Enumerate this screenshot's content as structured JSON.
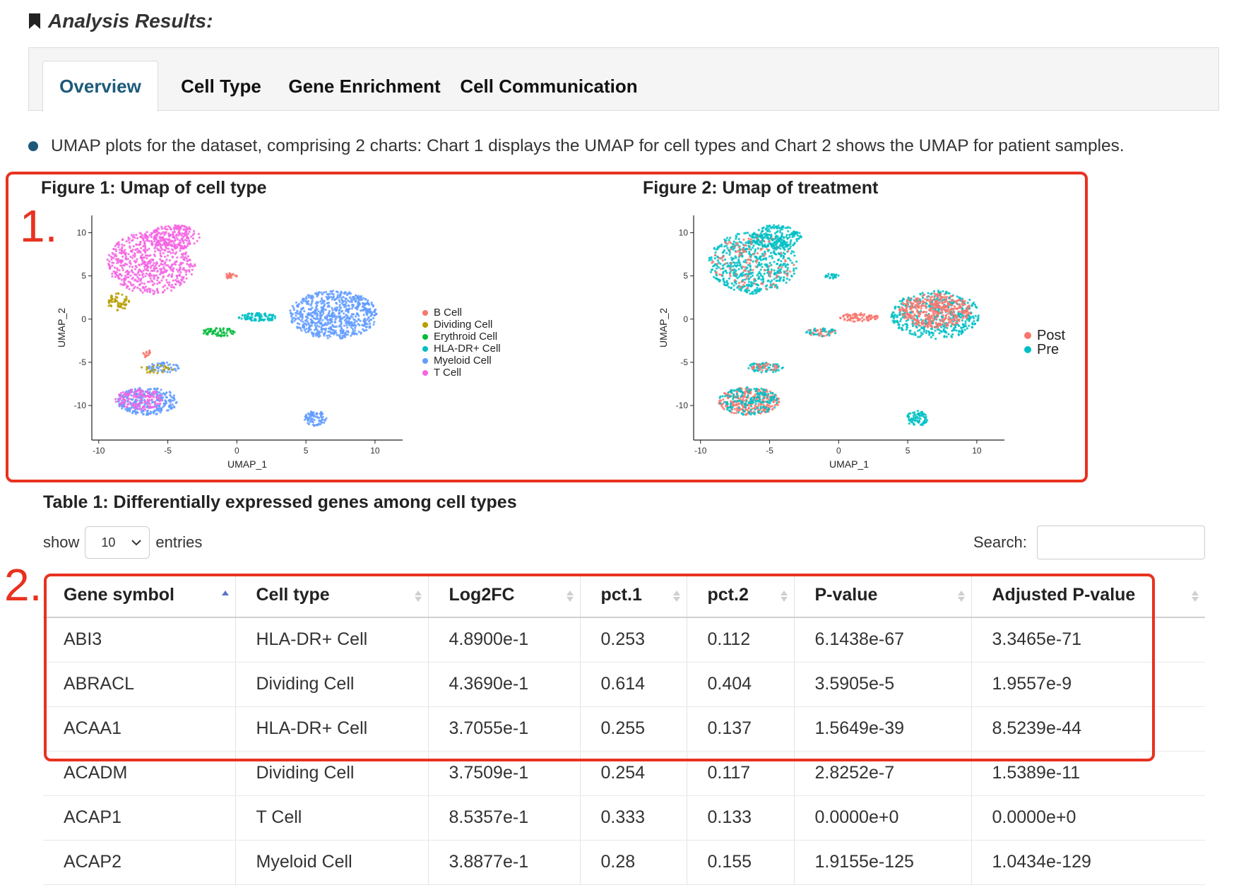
{
  "heading": "Analysis Results:",
  "tabs": [
    {
      "label": "Overview",
      "active": true
    },
    {
      "label": "Cell Type",
      "active": false
    },
    {
      "label": "Gene Enrichment",
      "active": false
    },
    {
      "label": "Cell Communication",
      "active": false
    }
  ],
  "intro_text": "UMAP plots for the dataset, comprising 2 charts: Chart 1 displays the UMAP for cell types and Chart 2 shows the UMAP for patient samples.",
  "markers": {
    "figures": "1.",
    "table": "2."
  },
  "colors": {
    "accent": "#1d5a7a",
    "highlight": "#e8321f"
  },
  "chart_data": [
    {
      "type": "scatter",
      "title": "Figure 1: Umap of cell type",
      "xlabel": "UMAP_1",
      "ylabel": "UMAP_2",
      "xlim": [
        -10.5,
        12
      ],
      "ylim": [
        -14,
        12
      ],
      "xticks": [
        -10,
        -5,
        0,
        5,
        10
      ],
      "yticks": [
        10,
        5,
        0,
        -5,
        -10
      ],
      "legend_position": "right",
      "series": [
        {
          "name": "B Cell",
          "color": "#f8766d"
        },
        {
          "name": "Dividing Cell",
          "color": "#b79f00"
        },
        {
          "name": "Erythroid Cell",
          "color": "#00ba38"
        },
        {
          "name": "HLA-DR+ Cell",
          "color": "#00bfc4"
        },
        {
          "name": "Myeloid Cell",
          "color": "#619cff"
        },
        {
          "name": "T Cell",
          "color": "#f564e3"
        }
      ],
      "clusters": [
        {
          "series": "T Cell",
          "cx": -6.2,
          "cy": 6.5,
          "rx": 3.2,
          "ry": 3.6,
          "n": 600
        },
        {
          "series": "T Cell",
          "cx": -4.5,
          "cy": 9.5,
          "rx": 1.8,
          "ry": 1.4,
          "n": 200
        },
        {
          "series": "Dividing Cell",
          "cx": -8.6,
          "cy": 2.0,
          "rx": 0.8,
          "ry": 1.0,
          "n": 60
        },
        {
          "series": "B Cell",
          "cx": -0.5,
          "cy": 5.0,
          "rx": 0.5,
          "ry": 0.3,
          "n": 25
        },
        {
          "series": "HLA-DR+ Cell",
          "cx": 1.5,
          "cy": 0.2,
          "rx": 1.4,
          "ry": 0.5,
          "n": 90
        },
        {
          "series": "Erythroid Cell",
          "cx": -1.3,
          "cy": -1.5,
          "rx": 1.2,
          "ry": 0.5,
          "n": 60
        },
        {
          "series": "Myeloid Cell",
          "cx": 7.0,
          "cy": 0.5,
          "rx": 3.2,
          "ry": 2.8,
          "n": 700
        },
        {
          "series": "Myeloid Cell",
          "cx": 5.7,
          "cy": -11.5,
          "rx": 0.8,
          "ry": 0.9,
          "n": 80
        },
        {
          "series": "Myeloid Cell",
          "cx": -6.5,
          "cy": -9.5,
          "rx": 2.2,
          "ry": 1.6,
          "n": 300
        },
        {
          "series": "T Cell",
          "cx": -7.0,
          "cy": -9.3,
          "rx": 1.8,
          "ry": 1.2,
          "n": 140
        },
        {
          "series": "Myeloid Cell",
          "cx": -5.3,
          "cy": -5.6,
          "rx": 1.2,
          "ry": 0.6,
          "n": 60
        },
        {
          "series": "Dividing Cell",
          "cx": -5.8,
          "cy": -5.8,
          "rx": 1.3,
          "ry": 0.5,
          "n": 25
        },
        {
          "series": "B Cell",
          "cx": -6.5,
          "cy": -4.0,
          "rx": 0.3,
          "ry": 0.5,
          "n": 15
        }
      ]
    },
    {
      "type": "scatter",
      "title": "Figure 2: Umap of treatment",
      "xlabel": "UMAP_1",
      "ylabel": "UMAP_2",
      "xlim": [
        -10.5,
        12
      ],
      "ylim": [
        -14,
        12
      ],
      "xticks": [
        -10,
        -5,
        0,
        5,
        10
      ],
      "yticks": [
        10,
        5,
        0,
        -5,
        -10
      ],
      "legend_position": "right",
      "series": [
        {
          "name": "Post",
          "color": "#f8766d"
        },
        {
          "name": "Pre",
          "color": "#00bfc4"
        }
      ],
      "clusters": [
        {
          "series": "Pre",
          "cx": -6.2,
          "cy": 6.5,
          "rx": 3.2,
          "ry": 3.6,
          "n": 550
        },
        {
          "series": "Post",
          "cx": -6.2,
          "cy": 6.5,
          "rx": 3.0,
          "ry": 3.3,
          "n": 120
        },
        {
          "series": "Pre",
          "cx": -4.5,
          "cy": 9.5,
          "rx": 1.8,
          "ry": 1.4,
          "n": 200
        },
        {
          "series": "Pre",
          "cx": -0.5,
          "cy": 5.0,
          "rx": 0.5,
          "ry": 0.3,
          "n": 25
        },
        {
          "series": "Post",
          "cx": 1.5,
          "cy": 0.2,
          "rx": 1.4,
          "ry": 0.5,
          "n": 80
        },
        {
          "series": "Post",
          "cx": -1.3,
          "cy": -1.5,
          "rx": 1.2,
          "ry": 0.5,
          "n": 30
        },
        {
          "series": "Pre",
          "cx": -1.3,
          "cy": -1.5,
          "rx": 1.2,
          "ry": 0.5,
          "n": 30
        },
        {
          "series": "Pre",
          "cx": 7.0,
          "cy": 0.5,
          "rx": 3.2,
          "ry": 2.8,
          "n": 450
        },
        {
          "series": "Post",
          "cx": 7.0,
          "cy": 1.0,
          "rx": 2.6,
          "ry": 2.0,
          "n": 380
        },
        {
          "series": "Pre",
          "cx": 5.7,
          "cy": -11.5,
          "rx": 0.8,
          "ry": 0.9,
          "n": 80
        },
        {
          "series": "Post",
          "cx": -6.5,
          "cy": -9.5,
          "rx": 2.2,
          "ry": 1.6,
          "n": 260
        },
        {
          "series": "Pre",
          "cx": -6.5,
          "cy": -9.5,
          "rx": 2.2,
          "ry": 1.6,
          "n": 180
        },
        {
          "series": "Pre",
          "cx": -5.3,
          "cy": -5.6,
          "rx": 1.3,
          "ry": 0.6,
          "n": 70
        },
        {
          "series": "Post",
          "cx": -5.3,
          "cy": -5.6,
          "rx": 1.0,
          "ry": 0.5,
          "n": 30
        }
      ]
    }
  ],
  "table": {
    "title": "Table 1: Differentially expressed genes among cell types",
    "show_label": "show",
    "entries_label": "entries",
    "page_length": "10",
    "search_label": "Search:",
    "search_value": "",
    "columns": [
      "Gene symbol",
      "Cell type",
      "Log2FC",
      "pct.1",
      "pct.2",
      "P-value",
      "Adjusted P-value"
    ],
    "rows": [
      [
        "ABI3",
        "HLA-DR+ Cell",
        "4.8900e-1",
        "0.253",
        "0.112",
        "6.1438e-67",
        "3.3465e-71"
      ],
      [
        "ABRACL",
        "Dividing Cell",
        "4.3690e-1",
        "0.614",
        "0.404",
        "3.5905e-5",
        "1.9557e-9"
      ],
      [
        "ACAA1",
        "HLA-DR+ Cell",
        "3.7055e-1",
        "0.255",
        "0.137",
        "1.5649e-39",
        "8.5239e-44"
      ],
      [
        "ACADM",
        "Dividing Cell",
        "3.7509e-1",
        "0.254",
        "0.117",
        "2.8252e-7",
        "1.5389e-11"
      ],
      [
        "ACAP1",
        "T Cell",
        "8.5357e-1",
        "0.333",
        "0.133",
        "0.0000e+0",
        "0.0000e+0"
      ],
      [
        "ACAP2",
        "Myeloid Cell",
        "3.8877e-1",
        "0.28",
        "0.155",
        "1.9155e-125",
        "1.0434e-129"
      ]
    ]
  }
}
